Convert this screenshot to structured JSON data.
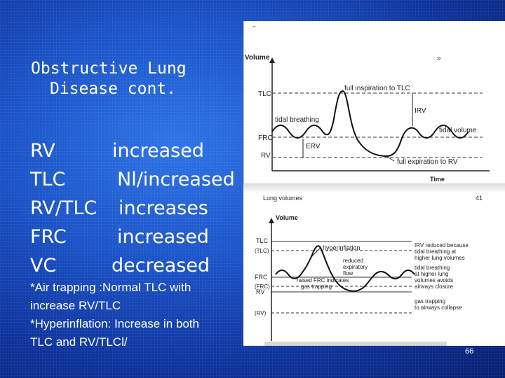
{
  "slide": {
    "title_line1": "Obstructive Lung",
    "title_line2": "Disease cont.",
    "measures": [
      {
        "name": "RV",
        "change": "increased"
      },
      {
        "name": "TLC",
        "change": "Nl/increased"
      },
      {
        "name": "RV/TLC",
        "change": "increases"
      },
      {
        "name": "FRC",
        "change": "increased"
      },
      {
        "name": "VC",
        "change": "decreased"
      }
    ],
    "note_line1": "*Air trapping :Normal TLC with",
    "note_line2": "increase RV/TLC",
    "note_line3": "*Hyperinflation: Increase in both",
    "note_line4": "TLC and RV/TLCl/",
    "page_number": "66"
  },
  "figure_top": {
    "y_axis": "Volume",
    "x_axis": "Time",
    "tlc": "TLC",
    "frc": "FRC",
    "rv": "RV",
    "full_inspiration": "full inspiration to TLC",
    "irv": "IRV",
    "tidal_breathing": "tidal breathing",
    "tidal_volume": "tidal volume",
    "erv": "ERV",
    "full_expiration": "full expiration to RV",
    "book_page": "41"
  },
  "figure_bottom": {
    "header": "Lung volumes",
    "y_axis": "Volume",
    "tlc": "TLC",
    "tlc_normal": "(TLC)",
    "frc": "FRC",
    "frc_normal": "(FRC)",
    "rv": "RV",
    "rv_normal": "(RV)",
    "hyperinflation": "hyperinflation",
    "reduced_flow_1": "reduced",
    "reduced_flow_2": "expiratory",
    "reduced_flow_3": "flow",
    "raised_frc_1": "raised FRC indicates",
    "raised_frc_2": "gas trapping",
    "irv_reduced_1": "IRV reduced because",
    "irv_reduced_2": "tidal breathing at",
    "irv_reduced_3": "higher lung volumes",
    "tidal_high_1": "tidal breathing",
    "tidal_high_2": "at higher lung",
    "tidal_high_3": "volumes avoids",
    "tidal_high_4": "airways closure",
    "gas_trapping_1": "gas trapping",
    "gas_trapping_2": "to airways collapse"
  }
}
